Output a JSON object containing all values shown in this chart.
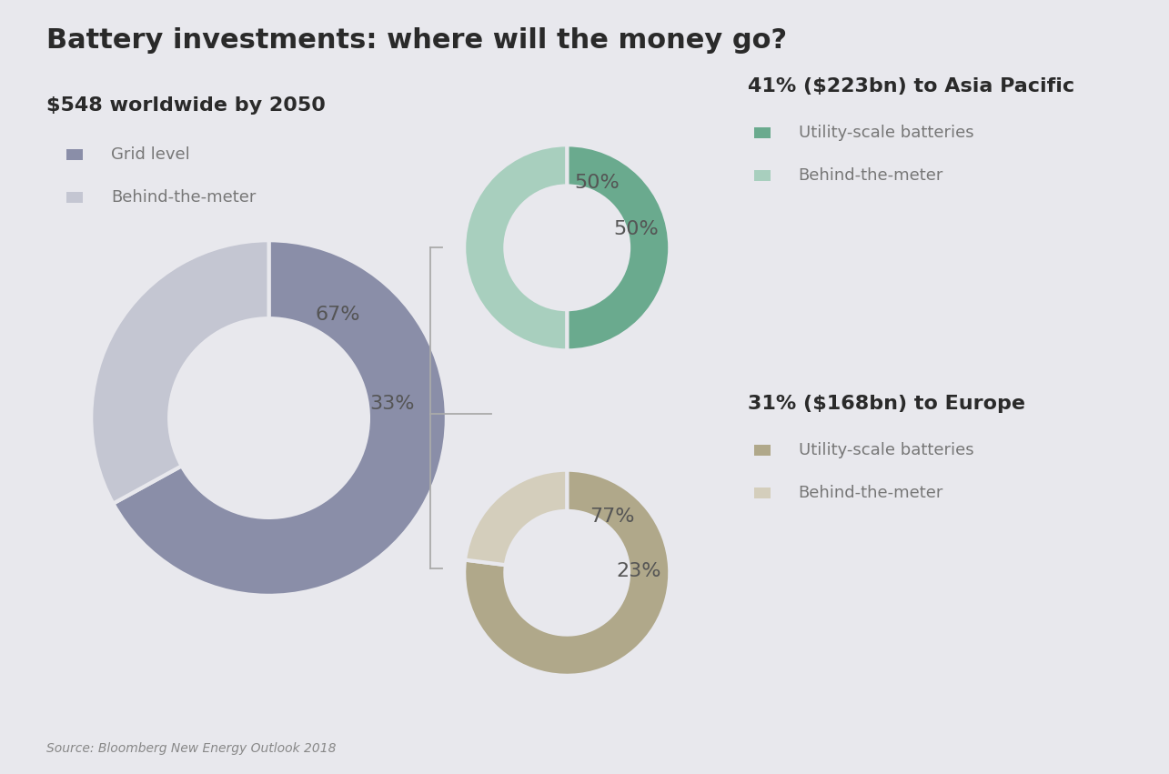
{
  "title": "Battery investments: where will the money go?",
  "background_color": "#e8e8ed",
  "title_fontsize": 22,
  "title_color": "#2a2a2a",
  "source_text": "Source: Bloomberg New Energy Outlook 2018",
  "main_chart": {
    "label": "$548 worldwide by 2050",
    "values": [
      67,
      33
    ],
    "colors": [
      "#8a8ea8",
      "#c4c6d2"
    ],
    "wedge_labels": [
      "67%",
      "33%"
    ],
    "legend_labels": [
      "Grid level",
      "Behind-the-meter"
    ],
    "legend_colors": [
      "#8a8ea8",
      "#c4c6d2"
    ],
    "donut_width": 0.44
  },
  "asia_chart": {
    "label": "41% ($223bn) to Asia Pacific",
    "values": [
      50,
      50
    ],
    "colors": [
      "#6aaa8e",
      "#a8cfbe"
    ],
    "wedge_labels": [
      "50%",
      "50%"
    ],
    "legend_labels": [
      "Utility-scale batteries",
      "Behind-the-meter"
    ],
    "legend_colors": [
      "#6aaa8e",
      "#a8cfbe"
    ],
    "donut_width": 0.4
  },
  "europe_chart": {
    "label": "31% ($168bn) to Europe",
    "values": [
      77,
      23
    ],
    "colors": [
      "#b0a88a",
      "#d4cebc"
    ],
    "wedge_labels": [
      "77%",
      "23%"
    ],
    "legend_labels": [
      "Utility-scale batteries",
      "Behind-the-meter"
    ],
    "legend_colors": [
      "#b0a88a",
      "#d4cebc"
    ],
    "donut_width": 0.4
  },
  "legend_fontsize": 13,
  "pct_fontsize": 16,
  "annotation_fontsize": 19,
  "label_fontsize": 16
}
